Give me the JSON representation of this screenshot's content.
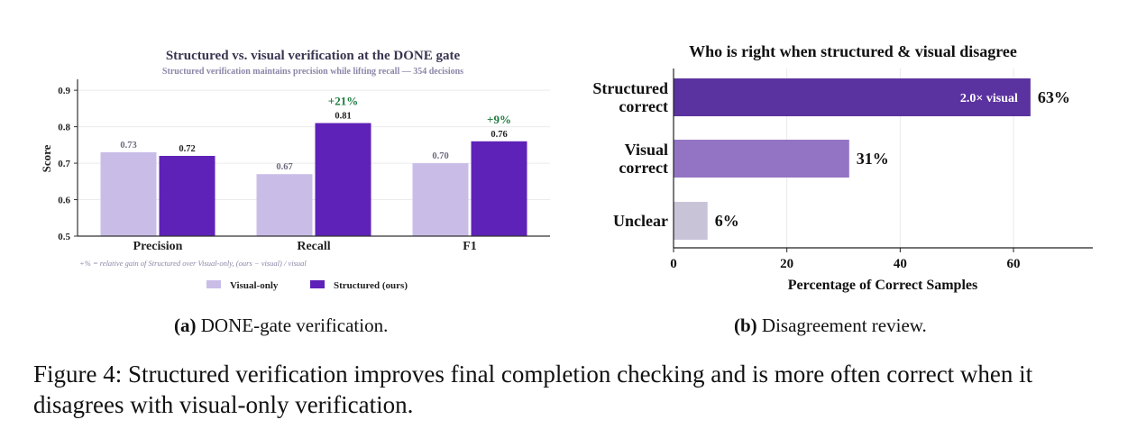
{
  "figure_caption": "Figure 4: Structured verification improves final completion checking and is more often correct when it disagrees with visual-only verification.",
  "panel_a": {
    "label": "(a)",
    "caption": "DONE-gate verification."
  },
  "panel_b": {
    "label": "(b)",
    "caption": "Disagreement review."
  },
  "chart_data": [
    {
      "type": "bar",
      "title": "Structured vs. visual verification at the DONE gate",
      "subtitle": "Structured verification maintains precision while lifting recall — 354 decisions",
      "ylabel": "Score",
      "xlabel": "",
      "categories": [
        "Precision",
        "Recall",
        "F1"
      ],
      "ylim": [
        0.5,
        0.93
      ],
      "yticks": [
        "0.5",
        "0.6",
        "0.7",
        "0.8",
        "0.9"
      ],
      "grid": true,
      "legend_position": "bottom",
      "series": [
        {
          "name": "Visual-only",
          "values": [
            0.73,
            0.67,
            0.7
          ],
          "labels": [
            "0.73",
            "0.67",
            "0.70"
          ],
          "color": "#c9bde8"
        },
        {
          "name": "Structured (ours)",
          "values": [
            0.72,
            0.81,
            0.76
          ],
          "labels": [
            "0.72",
            "0.81",
            "0.76"
          ],
          "color": "#5e22b8"
        }
      ],
      "gain_annotations": [
        "",
        "+21%",
        "+9%"
      ],
      "gain_color": "#1b7a3c",
      "footnote": "+%  =  relative gain of Structured over Visual-only,  (ours − visual) / visual"
    },
    {
      "type": "bar",
      "orientation": "horizontal",
      "title": "Who is right when structured & visual disagree",
      "xlabel": "Percentage of Correct Samples",
      "ylabel": "",
      "categories": [
        [
          "Structured",
          "correct"
        ],
        [
          "Visual",
          "correct"
        ],
        [
          "Unclear"
        ]
      ],
      "values": [
        63,
        31,
        6
      ],
      "value_labels": [
        "63%",
        "31%",
        "6%"
      ],
      "colors": [
        "#5b33a0",
        "#9374c4",
        "#c9c3d8"
      ],
      "xlim": [
        0,
        74
      ],
      "xticks": [
        "0",
        "20",
        "40",
        "60"
      ],
      "grid": true,
      "inside_annotation": "2.0× visual"
    }
  ]
}
